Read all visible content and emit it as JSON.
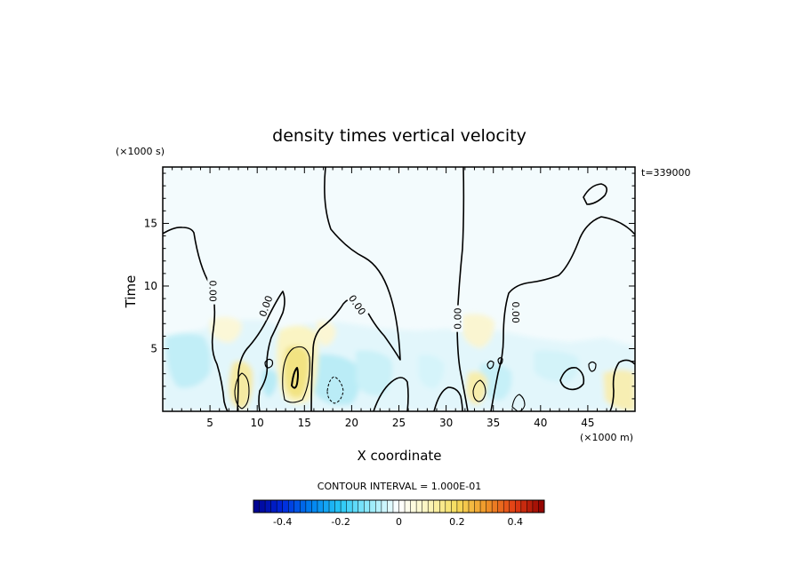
{
  "chart_data": {
    "type": "heatmap",
    "title": "density times vertical velocity",
    "xlabel": "X coordinate",
    "ylabel": "Time",
    "x_unit": "(×1000 m)",
    "y_unit": "(×1000 s)",
    "time_stamp": "t=339000",
    "xlim": [
      0,
      50
    ],
    "ylim": [
      0,
      19.5
    ],
    "x_ticks": [
      5,
      10,
      15,
      20,
      25,
      30,
      35,
      40,
      45
    ],
    "y_ticks": [
      5,
      10,
      15
    ],
    "contour_interval_text": "CONTOUR INTERVAL = 1.000E-01",
    "contour_labels": [
      {
        "text": "0.00",
        "x": 5.3,
        "y": 9.6,
        "rot": 90
      },
      {
        "text": "0.00",
        "x": 10.9,
        "y": 8.4,
        "rot": -70
      },
      {
        "text": "0.00",
        "x": 20.6,
        "y": 8.5,
        "rot": 55
      },
      {
        "text": "0.00",
        "x": 31.2,
        "y": 7.4,
        "rot": -90
      },
      {
        "text": "0.00",
        "x": 37.4,
        "y": 7.9,
        "rot": 90
      }
    ],
    "colorbar": {
      "min": -0.5,
      "max": 0.5,
      "ticks": [
        "-0.4",
        "-0.2",
        "0",
        "0.2",
        "0.4"
      ],
      "tick_values": [
        -0.4,
        -0.2,
        0,
        0.2,
        0.4
      ]
    }
  }
}
